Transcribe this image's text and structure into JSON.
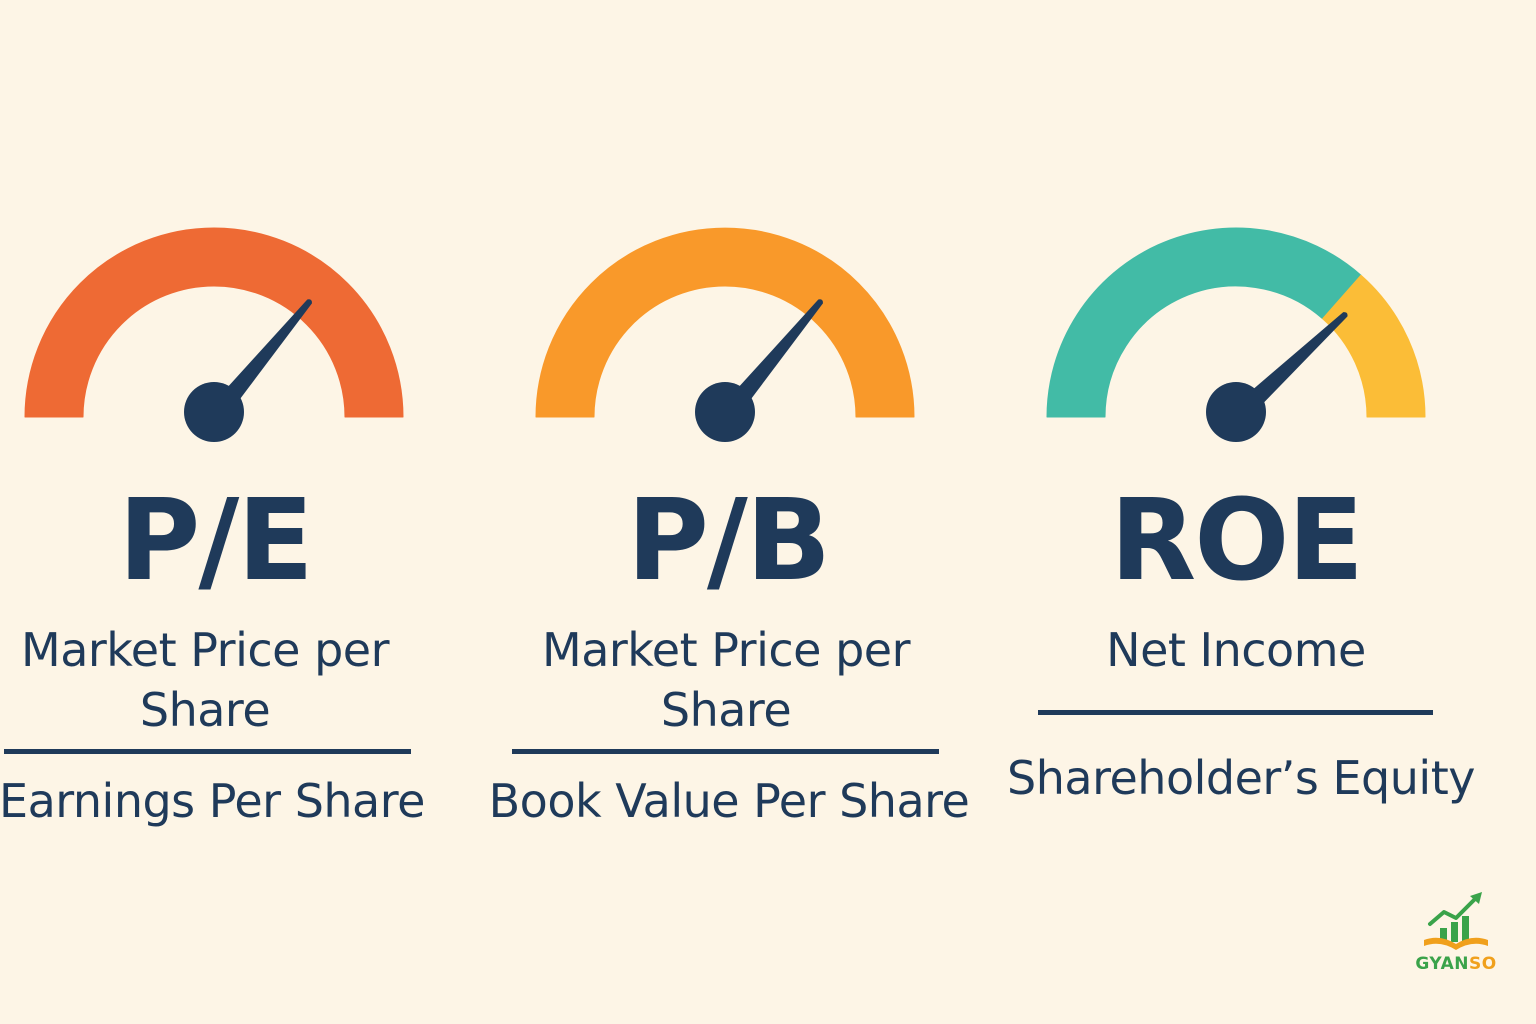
{
  "colors": {
    "background": "#fdf5e6",
    "navy": "#1f3a5a",
    "orange_red": "#ee6a34",
    "orange": "#f9992a",
    "teal": "#42bba6",
    "yellow": "#fbbd37",
    "logo_green": "#3aa34a",
    "logo_orange": "#f0a01c"
  },
  "metrics": [
    {
      "title": "P/E",
      "numerator": "Market Price per Share",
      "denominator": "Earnings Per Share",
      "gauge_colors": [
        "#ee6a34"
      ],
      "needle_level": 0.72
    },
    {
      "title": "P/B",
      "numerator": "Market Price per Share",
      "denominator": "Book Value Per Share",
      "gauge_colors": [
        "#f9992a"
      ],
      "needle_level": 0.72
    },
    {
      "title": "ROE",
      "numerator": "Net Income",
      "denominator": "Shareholder’s Equity",
      "gauge_colors": [
        "#42bba6",
        "#fbbd37"
      ],
      "gauge_split": 0.73,
      "needle_level": 0.76
    }
  ],
  "logo": {
    "icon": "growth-chart-book-icon",
    "text_part1": "GYAN",
    "text_part2": "SO"
  }
}
